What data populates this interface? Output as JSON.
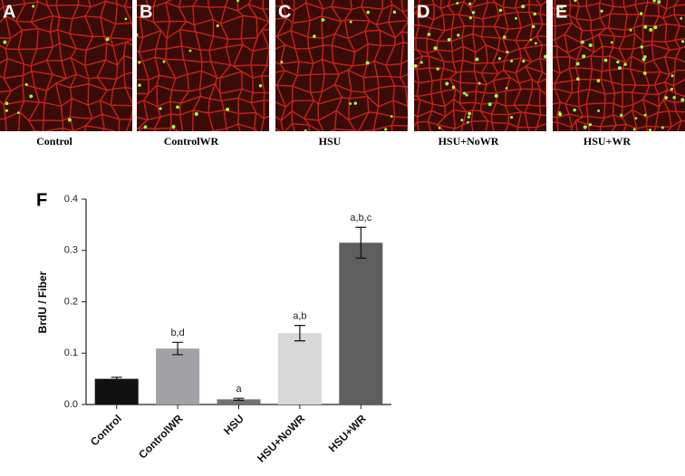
{
  "panels": [
    {
      "letter": "A",
      "caption": "Control"
    },
    {
      "letter": "B",
      "caption": "ControlWR"
    },
    {
      "letter": "C",
      "caption": "HSU"
    },
    {
      "letter": "D",
      "caption": "HSU+NoWR"
    },
    {
      "letter": "E",
      "caption": "HSU+WR"
    }
  ],
  "chart_data": {
    "type": "bar",
    "panel_label": "F",
    "y_label": "BrdU / Fiber",
    "categories": [
      "Control",
      "ControlWR",
      "HSU",
      "HSU+NoWR",
      "HSU+WR"
    ],
    "values": [
      0.05,
      0.109,
      0.01,
      0.139,
      0.315
    ],
    "errors": [
      0.003,
      0.012,
      0.002,
      0.015,
      0.03
    ],
    "colors": [
      "#111111",
      "#a2a2a6",
      "#707070",
      "#d8d8d8",
      "#5e5e5e"
    ],
    "annotations": [
      null,
      "b,d",
      "a",
      "a,b",
      "a,b,c"
    ],
    "ylim": [
      0,
      0.4
    ],
    "yticks": [
      {
        "value": 0,
        "label": "0.0"
      },
      0.1,
      0.2,
      0.3,
      0.4
    ]
  }
}
